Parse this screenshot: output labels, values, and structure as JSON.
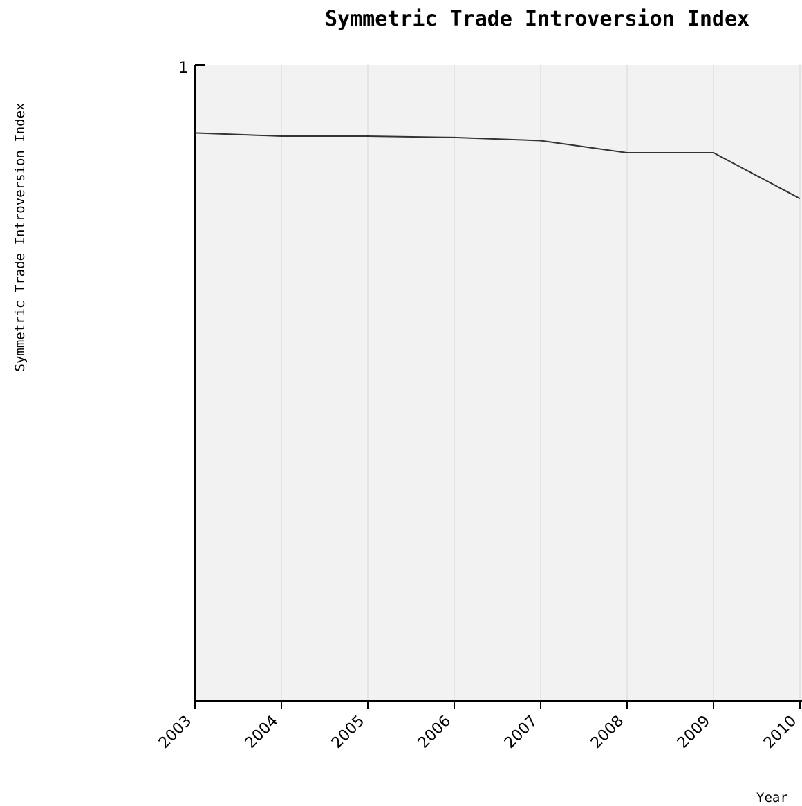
{
  "chart_data": {
    "type": "line",
    "title": "Symmetric Trade Introversion Index",
    "xlabel": "Year",
    "ylabel": "Symmetric Trade Introversion Index",
    "x": [
      "2003",
      "2004",
      "2005",
      "2006",
      "2007",
      "2008",
      "2009",
      "2010"
    ],
    "series": [
      {
        "values": [
          0.893,
          0.888,
          0.888,
          0.886,
          0.881,
          0.862,
          0.862,
          0.79
        ]
      }
    ],
    "ylim": [
      0,
      1
    ],
    "y_ticks": [
      "1"
    ],
    "grid": "vertical",
    "legend": "none",
    "colors": {
      "plot_background": "#f2f2f2",
      "gridline": "#d6d6d6",
      "line": "#333333",
      "axis": "#000000"
    }
  }
}
